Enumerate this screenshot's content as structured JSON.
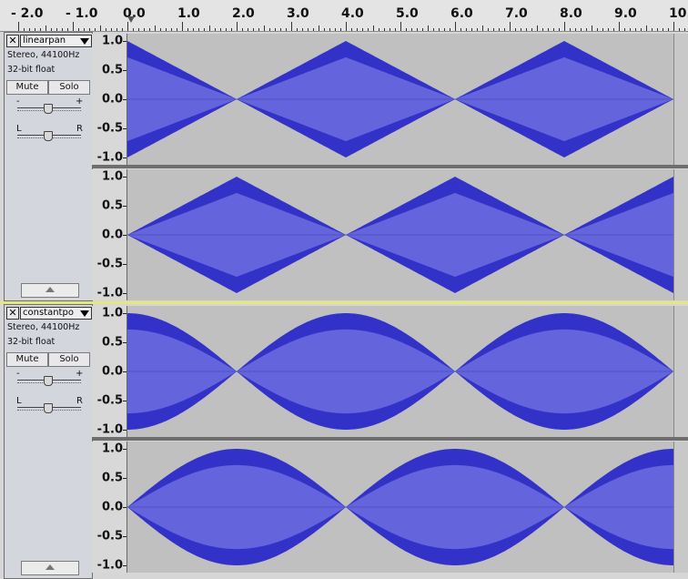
{
  "ruler": {
    "ticks": [
      "- 2.0",
      "- 1.0",
      "0.0",
      "1.0",
      "2.0",
      "3.0",
      "4.0",
      "5.0",
      "6.0",
      "7.0",
      "8.0",
      "9.0",
      "10.0"
    ]
  },
  "tracks": [
    {
      "name": "linearpan",
      "format": "Stereo, 44100Hz",
      "bits": "32-bit float",
      "mute": "Mute",
      "solo": "Solo",
      "gain_minus": "-",
      "gain_plus": "+",
      "pan_left": "L",
      "pan_right": "R",
      "pan_law": "linear",
      "channels": [
        "left",
        "right"
      ]
    },
    {
      "name": "constantpo",
      "format": "Stereo, 44100Hz",
      "bits": "32-bit float",
      "mute": "Mute",
      "solo": "Solo",
      "gain_minus": "-",
      "gain_plus": "+",
      "pan_left": "L",
      "pan_right": "R",
      "pan_law": "constant-power",
      "channels": [
        "left",
        "right"
      ]
    }
  ],
  "amplitude_labels": [
    "1.0",
    "0.5",
    "0.0",
    "-0.5",
    "-1.0"
  ],
  "colors": {
    "wave_outer": "#3232c8",
    "wave_inner": "#6464dc",
    "wave_bg": "#c0c0c0",
    "selected_track_border": "#e6e680"
  },
  "icons": {
    "close": "✕",
    "menu_arrow": "chevron-down-icon",
    "collapse": "triangle-up-icon"
  }
}
